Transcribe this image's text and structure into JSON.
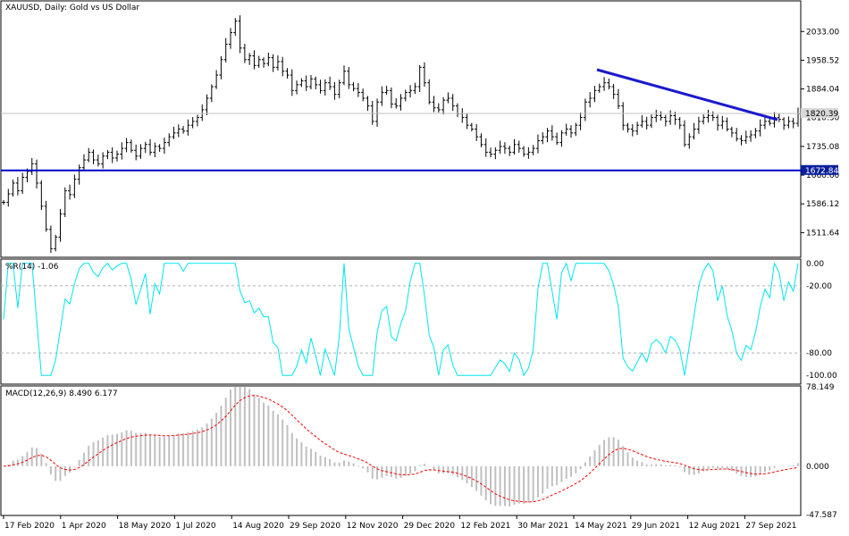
{
  "chart_data": {
    "type": "line",
    "colors": {
      "background": "#ffffff",
      "frame": "#000000",
      "bars": "#000000",
      "support_line": "#0000c8",
      "trend_line": "#1a1acd",
      "current_price_line": "#c0c0c0",
      "williams_r": "#00e5ee",
      "macd_histogram": "#c0c0c0",
      "macd_signal": "#ff0000",
      "level_box_fill": "#0a1f9c",
      "level_box_text": "#ffffff"
    },
    "main": {
      "title": "XAUUSD, Daily:  Gold vs US Dollar",
      "ylim": [
        1450,
        2110
      ],
      "yticks": [
        "2033.00",
        "1958.52",
        "1884.04",
        "1810.30",
        "1735.08",
        "1660.60",
        "1586.12",
        "1511.64"
      ],
      "current_price": 1820.39,
      "current_price_label": "1820.39",
      "support_level": 1672.84,
      "support_label": "1672.84",
      "trend_line": {
        "from": [
          "May 2021",
          1924
        ],
        "to": [
          "Oct 2021",
          1795
        ]
      },
      "closes": [
        1590,
        1612,
        1640,
        1620,
        1655,
        1670,
        1690,
        1640,
        1580,
        1520,
        1470,
        1500,
        1560,
        1620,
        1610,
        1650,
        1680,
        1700,
        1720,
        1700,
        1690,
        1710,
        1720,
        1705,
        1715,
        1730,
        1745,
        1725,
        1710,
        1730,
        1740,
        1720,
        1735,
        1730,
        1745,
        1760,
        1770,
        1780,
        1775,
        1790,
        1800,
        1810,
        1830,
        1860,
        1890,
        1920,
        1960,
        2000,
        2030,
        2060,
        1990,
        1960,
        1970,
        1945,
        1960,
        1950,
        1965,
        1940,
        1955,
        1930,
        1920,
        1880,
        1895,
        1905,
        1890,
        1910,
        1895,
        1880,
        1900,
        1890,
        1870,
        1900,
        1930,
        1895,
        1885,
        1875,
        1860,
        1840,
        1800,
        1850,
        1875,
        1880,
        1845,
        1840,
        1860,
        1875,
        1880,
        1890,
        1940,
        1900,
        1850,
        1835,
        1830,
        1855,
        1860,
        1840,
        1820,
        1810,
        1790,
        1780,
        1760,
        1740,
        1720,
        1715,
        1725,
        1735,
        1730,
        1720,
        1740,
        1730,
        1715,
        1720,
        1730,
        1750,
        1760,
        1775,
        1760,
        1745,
        1770,
        1780,
        1770,
        1790,
        1810,
        1850,
        1860,
        1880,
        1890,
        1900,
        1890,
        1870,
        1840,
        1790,
        1780,
        1775,
        1790,
        1800,
        1790,
        1810,
        1815,
        1810,
        1800,
        1815,
        1805,
        1790,
        1740,
        1760,
        1780,
        1800,
        1810,
        1815,
        1810,
        1790,
        1800,
        1780,
        1770,
        1755,
        1750,
        1760,
        1765,
        1775,
        1790,
        1800,
        1795,
        1810,
        1805,
        1790,
        1800,
        1795,
        1820
      ]
    },
    "williams_r": {
      "title": "%R(14) -1.06",
      "ylim": [
        -107,
        3
      ],
      "yticks": [
        "0.00",
        "-20.00",
        "-80.00",
        "-100.00"
      ],
      "levels": [
        -20,
        -80
      ],
      "last_value": -1.06
    },
    "macd": {
      "title": "MACD(12,26,9) 8.490 6.177",
      "ylim": [
        -47.587,
        78.149
      ],
      "yticks": [
        "78.149",
        "0.000",
        "-47.587"
      ],
      "macd_value": 8.49,
      "signal_value": 6.177
    },
    "xaxis": {
      "labels": [
        "17 Feb 2020",
        "1 Apr 2020",
        "18 May 2020",
        "1 Jul 2020",
        "14 Aug 2020",
        "29 Sep 2020",
        "12 Nov 2020",
        "29 Dec 2020",
        "12 Feb 2021",
        "30 Mar 2021",
        "14 May 2021",
        "29 Jun 2021",
        "12 Aug 2021",
        "27 Sep 2021"
      ]
    }
  }
}
